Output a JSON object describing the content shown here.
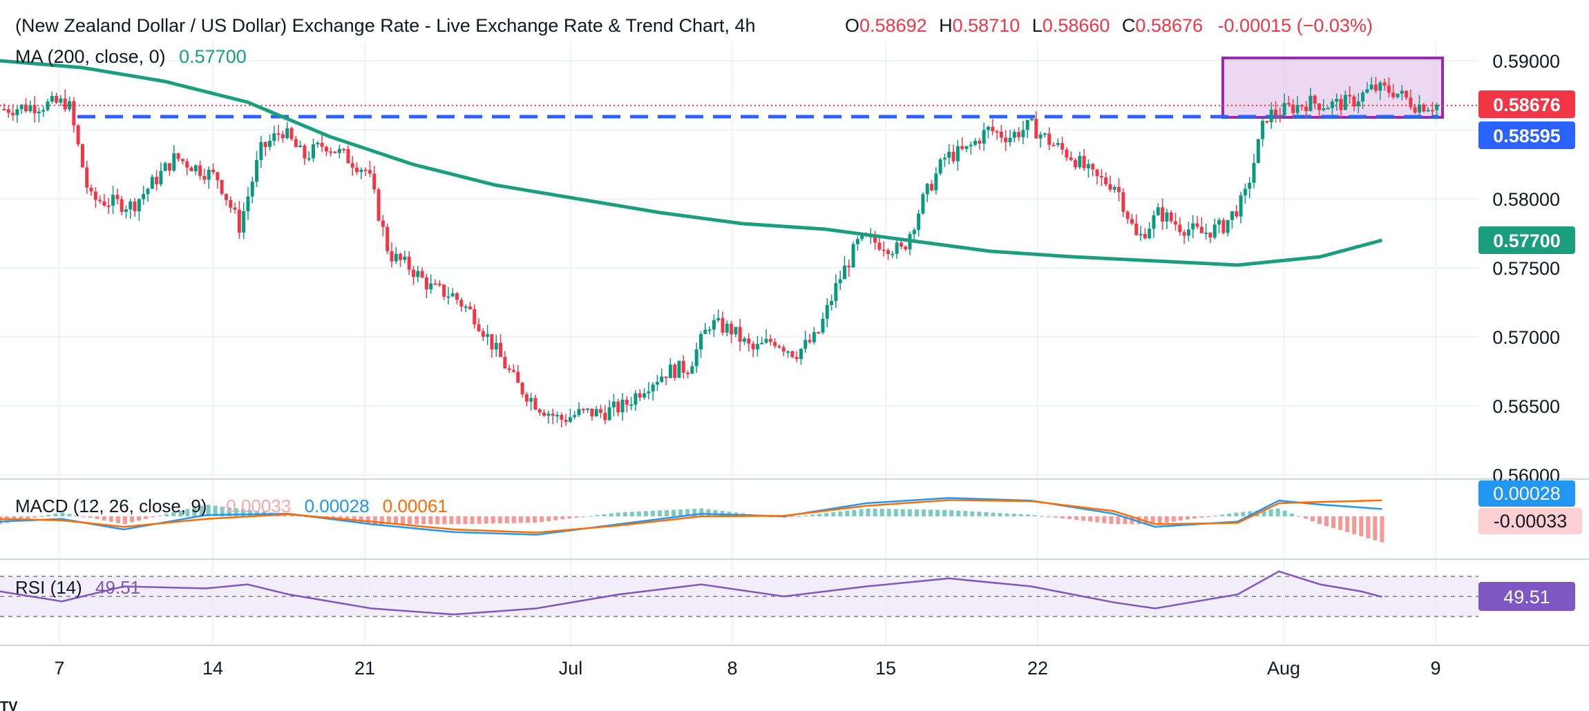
{
  "header": {
    "title": "(New Zealand Dollar / US Dollar) Exchange Rate - Live Exchange Rate & Trend Chart, 4h",
    "o_label": "O",
    "o_value": "0.58692",
    "h_label": "H",
    "h_value": "0.58710",
    "l_label": "L",
    "l_value": "0.58660",
    "c_label": "C",
    "c_value": "0.58676",
    "change": "-0.00015 (−0.03%)",
    "ma_label": "MA (200, close, 0)",
    "ma_value": "0.57700"
  },
  "macd": {
    "label": "MACD (12, 26, close, 9)",
    "histogram": "-0.00033",
    "macd": "0.00028",
    "signal": "0.00061"
  },
  "rsi": {
    "label": "RSI (14)",
    "value": "49.51"
  },
  "price_badges": {
    "last": "0.58676",
    "support": "0.58595",
    "ma": "0.57700",
    "macd": "0.00028",
    "histogram": "-0.00033",
    "rsi": "49.51"
  },
  "colors": {
    "up": "#089981",
    "down": "#f23645",
    "ma": "#1a9e7d",
    "macd_line": "#2962ff",
    "signal_line": "#ff6d00",
    "rsi_line": "#7e57c2",
    "support_line": "#2962ff",
    "box_stroke": "#9c27b0",
    "box_fill": "#e1bee7",
    "rsi_band": "#ede7f6"
  },
  "chart_data": {
    "type": "candlestick",
    "title": "(New Zealand Dollar / US Dollar) Exchange Rate - Live Exchange Rate & Trend Chart, 4h",
    "y_ticks": [
      "0.59000",
      "0.58500",
      "0.58000",
      "0.57500",
      "0.57000",
      "0.56500",
      "0.56000"
    ],
    "ylim": [
      0.56,
      0.5915
    ],
    "x_ticks": [
      "7",
      "14",
      "21",
      "Jul",
      "8",
      "15",
      "22",
      "Aug",
      "9"
    ],
    "support_level": 0.58595,
    "last_price": 0.58676,
    "consolidation_box": {
      "from_date": "Jul 30",
      "to_date": "Aug 8",
      "low": 0.5859,
      "high": 0.5902
    },
    "price_path": [
      [
        0,
        0.5865
      ],
      [
        3,
        0.587
      ],
      [
        4,
        0.58
      ],
      [
        6,
        0.5795
      ],
      [
        8,
        0.583
      ],
      [
        10,
        0.5815
      ],
      [
        11,
        0.578
      ],
      [
        12,
        0.5835
      ],
      [
        13,
        0.585
      ],
      [
        14,
        0.583
      ],
      [
        15,
        0.584
      ],
      [
        17,
        0.582
      ],
      [
        18,
        0.576
      ],
      [
        19,
        0.575
      ],
      [
        20,
        0.5735
      ],
      [
        21,
        0.573
      ],
      [
        22,
        0.5715
      ],
      [
        23,
        0.569
      ],
      [
        24,
        0.5665
      ],
      [
        25,
        0.565
      ],
      [
        26,
        0.564
      ],
      [
        27,
        0.5645
      ],
      [
        28,
        0.5645
      ],
      [
        29,
        0.565
      ],
      [
        30,
        0.5665
      ],
      [
        31,
        0.5675
      ],
      [
        32,
        0.5678
      ],
      [
        33,
        0.571
      ],
      [
        34,
        0.5705
      ],
      [
        35,
        0.569
      ],
      [
        36,
        0.5698
      ],
      [
        37,
        0.5688
      ],
      [
        38,
        0.57
      ],
      [
        39,
        0.574
      ],
      [
        40,
        0.577
      ],
      [
        41,
        0.5768
      ],
      [
        42,
        0.5762
      ],
      [
        43,
        0.58
      ],
      [
        44,
        0.583
      ],
      [
        45,
        0.5835
      ],
      [
        46,
        0.585
      ],
      [
        47,
        0.5845
      ],
      [
        48,
        0.5853
      ],
      [
        49,
        0.584
      ],
      [
        50,
        0.583
      ],
      [
        51,
        0.5815
      ],
      [
        52,
        0.581
      ],
      [
        53,
        0.577
      ],
      [
        54,
        0.579
      ],
      [
        55,
        0.578
      ],
      [
        56,
        0.5775
      ],
      [
        57,
        0.578
      ],
      [
        58,
        0.58
      ],
      [
        59,
        0.586
      ],
      [
        60,
        0.5865
      ],
      [
        61,
        0.587
      ],
      [
        62,
        0.5868
      ],
      [
        63,
        0.587
      ],
      [
        64,
        0.588
      ],
      [
        65,
        0.5878
      ],
      [
        66,
        0.5868
      ],
      [
        67,
        0.5868
      ]
    ],
    "moving_average": [
      [
        0,
        0.59
      ],
      [
        4,
        0.5895
      ],
      [
        8,
        0.5885
      ],
      [
        12,
        0.587
      ],
      [
        16,
        0.5845
      ],
      [
        20,
        0.5825
      ],
      [
        24,
        0.581
      ],
      [
        28,
        0.58
      ],
      [
        32,
        0.579
      ],
      [
        36,
        0.5782
      ],
      [
        40,
        0.5778
      ],
      [
        44,
        0.577
      ],
      [
        48,
        0.5762
      ],
      [
        52,
        0.5758
      ],
      [
        56,
        0.5755
      ],
      [
        60,
        0.5752
      ],
      [
        64,
        0.5758
      ],
      [
        67,
        0.577
      ]
    ],
    "macd_series": [
      [
        0,
        -0.2
      ],
      [
        3,
        -0.1
      ],
      [
        6,
        -0.5
      ],
      [
        10,
        0.05
      ],
      [
        14,
        0.1
      ],
      [
        18,
        -0.3
      ],
      [
        22,
        -0.6
      ],
      [
        26,
        -0.7
      ],
      [
        30,
        -0.3
      ],
      [
        34,
        0.1
      ],
      [
        38,
        0.0
      ],
      [
        42,
        0.5
      ],
      [
        46,
        0.7
      ],
      [
        50,
        0.6
      ],
      [
        54,
        0.1
      ],
      [
        56,
        -0.4
      ],
      [
        60,
        -0.2
      ],
      [
        62,
        0.6
      ],
      [
        64,
        0.45
      ],
      [
        67,
        0.28
      ]
    ],
    "signal_series": [
      [
        0,
        -0.1
      ],
      [
        3,
        -0.15
      ],
      [
        6,
        -0.4
      ],
      [
        10,
        -0.1
      ],
      [
        14,
        0.08
      ],
      [
        18,
        -0.2
      ],
      [
        22,
        -0.5
      ],
      [
        26,
        -0.62
      ],
      [
        30,
        -0.35
      ],
      [
        34,
        0.0
      ],
      [
        38,
        0.02
      ],
      [
        42,
        0.4
      ],
      [
        46,
        0.62
      ],
      [
        50,
        0.58
      ],
      [
        54,
        0.2
      ],
      [
        56,
        -0.3
      ],
      [
        60,
        -0.25
      ],
      [
        62,
        0.5
      ],
      [
        64,
        0.55
      ],
      [
        67,
        0.61
      ]
    ],
    "rsi_series": [
      [
        0,
        55
      ],
      [
        3,
        45
      ],
      [
        6,
        60
      ],
      [
        10,
        58
      ],
      [
        12,
        62
      ],
      [
        14,
        52
      ],
      [
        18,
        38
      ],
      [
        22,
        32
      ],
      [
        26,
        38
      ],
      [
        30,
        52
      ],
      [
        34,
        62
      ],
      [
        38,
        50
      ],
      [
        42,
        60
      ],
      [
        46,
        68
      ],
      [
        50,
        60
      ],
      [
        54,
        44
      ],
      [
        56,
        38
      ],
      [
        60,
        52
      ],
      [
        62,
        75
      ],
      [
        64,
        62
      ],
      [
        66,
        55
      ],
      [
        67,
        49.51
      ]
    ],
    "rsi_bands": [
      70,
      50,
      30
    ]
  }
}
